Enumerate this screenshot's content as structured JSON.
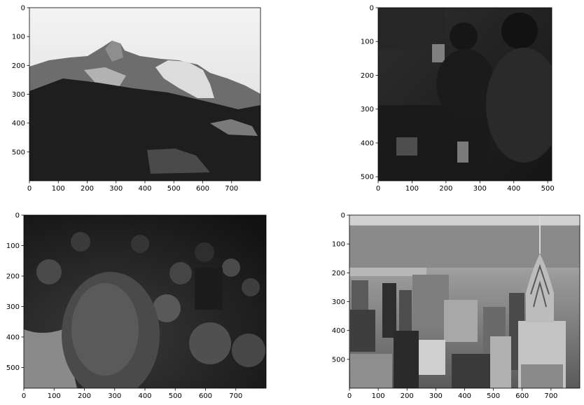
{
  "figure": {
    "layout": "2x2 grid of grayscale image subplots with pixel-coordinate axes",
    "background": "#ffffff",
    "axis_color": "#000000"
  },
  "chart_data": [
    {
      "type": "heatmap",
      "colormap": "gray",
      "image_content": "mountain-landscape",
      "xlim": [
        0,
        800
      ],
      "ylim": [
        600,
        0
      ],
      "xticks": [
        0,
        100,
        200,
        300,
        400,
        500,
        600,
        700
      ],
      "yticks": [
        0,
        100,
        200,
        300,
        400,
        500
      ]
    },
    {
      "type": "heatmap",
      "colormap": "gray",
      "image_content": "dark-indoor-people",
      "xlim": [
        0,
        512
      ],
      "ylim": [
        512,
        0
      ],
      "xticks": [
        0,
        100,
        200,
        300,
        400,
        500
      ],
      "yticks": [
        0,
        100,
        200,
        300,
        400,
        500
      ]
    },
    {
      "type": "heatmap",
      "colormap": "gray",
      "image_content": "crowd",
      "xlim": [
        0,
        800
      ],
      "ylim": [
        568,
        0
      ],
      "xticks": [
        0,
        100,
        200,
        300,
        400,
        500,
        600,
        700
      ],
      "yticks": [
        0,
        100,
        200,
        300,
        400,
        500
      ]
    },
    {
      "type": "heatmap",
      "colormap": "gray",
      "image_content": "city-skyline",
      "xlim": [
        0,
        800
      ],
      "ylim": [
        600,
        0
      ],
      "xticks": [
        0,
        100,
        200,
        300,
        400,
        500,
        600,
        700
      ],
      "yticks": [
        0,
        100,
        200,
        300,
        400,
        500
      ]
    }
  ]
}
